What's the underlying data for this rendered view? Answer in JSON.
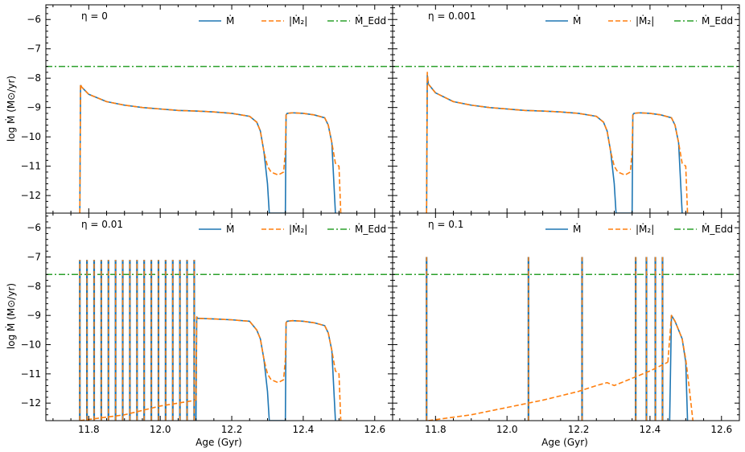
{
  "figure": {
    "xlabel": "Age (Gyr)",
    "ylabel": "log Ṁ (M⊙/yr)",
    "colors": {
      "mdot": "#1f77b4",
      "m2dot": "#ff7f0e",
      "edd": "#2ca02c"
    }
  },
  "chart_data": [
    {
      "type": "line",
      "panel_label": "η = 0",
      "xlim": [
        11.68,
        12.65
      ],
      "ylim": [
        -12.6,
        -5.5
      ],
      "xticks": [],
      "yticks": [
        "−12",
        "−11",
        "−10",
        "−9",
        "−8",
        "−7",
        "−6"
      ],
      "legend": {
        "placement": "top-right",
        "entries": [
          "Ṁ",
          "|Ṁ₂|",
          "Ṁ_Edd"
        ]
      },
      "edd_level": -7.6,
      "series": [
        {
          "name": "Ṁ",
          "key": "mdot",
          "x": [
            11.775,
            11.777,
            11.78,
            11.8,
            11.85,
            11.9,
            11.95,
            12.0,
            12.05,
            12.1,
            12.15,
            12.2,
            12.25,
            12.27,
            12.28,
            12.29,
            12.3,
            12.305,
            12.35,
            12.352,
            12.355,
            12.37,
            12.4,
            12.43,
            12.46,
            12.47,
            12.48,
            12.49
          ],
          "y": [
            -12.6,
            -8.25,
            -8.3,
            -8.55,
            -8.8,
            -8.92,
            -9.0,
            -9.05,
            -9.1,
            -9.12,
            -9.15,
            -9.2,
            -9.3,
            -9.5,
            -9.8,
            -10.5,
            -11.6,
            -12.6,
            -12.6,
            -9.25,
            -9.2,
            -9.18,
            -9.2,
            -9.25,
            -9.35,
            -9.6,
            -10.2,
            -12.6
          ]
        },
        {
          "name": "|Ṁ₂|",
          "key": "m2dot",
          "x": [
            11.775,
            11.777,
            11.78,
            11.8,
            11.85,
            11.9,
            11.95,
            12.0,
            12.05,
            12.1,
            12.15,
            12.2,
            12.25,
            12.27,
            12.28,
            12.29,
            12.3,
            12.31,
            12.33,
            12.345,
            12.35,
            12.352,
            12.355,
            12.37,
            12.4,
            12.43,
            12.46,
            12.47,
            12.48,
            12.49,
            12.5,
            12.505
          ],
          "y": [
            -12.6,
            -8.2,
            -8.3,
            -8.55,
            -8.8,
            -8.92,
            -9.0,
            -9.05,
            -9.1,
            -9.12,
            -9.15,
            -9.2,
            -9.3,
            -9.5,
            -9.8,
            -10.5,
            -11.0,
            -11.2,
            -11.3,
            -11.2,
            -10.5,
            -9.25,
            -9.2,
            -9.18,
            -9.2,
            -9.25,
            -9.35,
            -9.6,
            -10.2,
            -10.9,
            -11.0,
            -12.6
          ]
        },
        {
          "name": "Ṁ_Edd",
          "key": "edd",
          "x": [
            11.68,
            12.65
          ],
          "y": [
            -7.6,
            -7.6
          ]
        }
      ]
    },
    {
      "type": "line",
      "panel_label": "η = 0.001",
      "xlim": [
        11.68,
        12.65
      ],
      "ylim": [
        -12.6,
        -5.5
      ],
      "xticks": [],
      "yticks": [],
      "legend": {
        "placement": "top-right",
        "entries": [
          "Ṁ",
          "|Ṁ₂|",
          "Ṁ_Edd"
        ]
      },
      "edd_level": -7.6,
      "series": [
        {
          "name": "Ṁ",
          "key": "mdot",
          "x": [
            11.775,
            11.777,
            11.78,
            11.8,
            11.85,
            11.9,
            11.95,
            12.0,
            12.05,
            12.1,
            12.15,
            12.2,
            12.25,
            12.27,
            12.28,
            12.29,
            12.3,
            12.305,
            12.35,
            12.352,
            12.355,
            12.37,
            12.4,
            12.43,
            12.46,
            12.47,
            12.48,
            12.49
          ],
          "y": [
            -12.6,
            -7.9,
            -8.2,
            -8.5,
            -8.8,
            -8.92,
            -9.0,
            -9.05,
            -9.1,
            -9.12,
            -9.15,
            -9.2,
            -9.3,
            -9.5,
            -9.8,
            -10.5,
            -11.6,
            -12.6,
            -12.6,
            -9.25,
            -9.2,
            -9.18,
            -9.2,
            -9.25,
            -9.35,
            -9.6,
            -10.2,
            -12.6
          ]
        },
        {
          "name": "|Ṁ₂|",
          "key": "m2dot",
          "x": [
            11.775,
            11.777,
            11.78,
            11.8,
            11.85,
            11.9,
            11.95,
            12.0,
            12.05,
            12.1,
            12.15,
            12.2,
            12.25,
            12.27,
            12.28,
            12.29,
            12.3,
            12.31,
            12.33,
            12.345,
            12.35,
            12.352,
            12.355,
            12.37,
            12.4,
            12.43,
            12.46,
            12.47,
            12.48,
            12.49,
            12.5,
            12.505
          ],
          "y": [
            -12.6,
            -7.8,
            -8.2,
            -8.5,
            -8.8,
            -8.92,
            -9.0,
            -9.05,
            -9.1,
            -9.12,
            -9.15,
            -9.2,
            -9.3,
            -9.5,
            -9.8,
            -10.5,
            -11.0,
            -11.2,
            -11.3,
            -11.2,
            -10.5,
            -9.25,
            -9.2,
            -9.18,
            -9.2,
            -9.25,
            -9.35,
            -9.6,
            -10.2,
            -10.9,
            -11.0,
            -12.6
          ]
        },
        {
          "name": "Ṁ_Edd",
          "key": "edd",
          "x": [
            11.68,
            12.65
          ],
          "y": [
            -7.6,
            -7.6
          ]
        }
      ]
    },
    {
      "type": "line",
      "panel_label": "η = 0.01",
      "xlim": [
        11.68,
        12.65
      ],
      "ylim": [
        -12.6,
        -5.5
      ],
      "xticks": [
        "11.8",
        "12.0",
        "12.2",
        "12.4",
        "12.6"
      ],
      "yticks": [
        "−12",
        "−11",
        "−10",
        "−9",
        "−8",
        "−7",
        "−6"
      ],
      "legend": {
        "placement": "top-right",
        "entries": [
          "Ṁ",
          "|Ṁ₂|",
          "Ṁ_Edd"
        ]
      },
      "edd_level": -7.6,
      "pulses": {
        "x": [
          11.775,
          11.795,
          11.815,
          11.835,
          11.855,
          11.875,
          11.895,
          11.915,
          11.935,
          11.955,
          11.975,
          11.995,
          12.015,
          12.035,
          12.055,
          12.075,
          12.095
        ],
        "peak": -7.1
      },
      "series": [
        {
          "name": "|Ṁ₂| (baseline)",
          "key": "m2dot",
          "x": [
            11.775,
            11.9,
            12.0,
            12.1
          ],
          "y": [
            -12.6,
            -12.4,
            -12.1,
            -11.9
          ]
        },
        {
          "name": "Ṁ",
          "key": "mdot",
          "x": [
            12.1,
            12.102,
            12.105,
            12.15,
            12.2,
            12.25,
            12.27,
            12.28,
            12.29,
            12.3,
            12.305,
            12.35,
            12.352,
            12.355,
            12.37,
            12.4,
            12.43,
            12.46,
            12.47,
            12.48,
            12.49
          ],
          "y": [
            -12.6,
            -9.05,
            -9.1,
            -9.12,
            -9.15,
            -9.2,
            -9.5,
            -9.8,
            -10.5,
            -11.6,
            -12.6,
            -12.6,
            -9.25,
            -9.2,
            -9.18,
            -9.2,
            -9.25,
            -9.35,
            -9.6,
            -10.2,
            -12.6
          ]
        },
        {
          "name": "|Ṁ₂|",
          "key": "m2dot",
          "x": [
            12.1,
            12.102,
            12.105,
            12.15,
            12.2,
            12.25,
            12.27,
            12.28,
            12.29,
            12.3,
            12.31,
            12.33,
            12.345,
            12.35,
            12.352,
            12.355,
            12.37,
            12.4,
            12.43,
            12.46,
            12.47,
            12.48,
            12.49,
            12.5,
            12.505
          ],
          "y": [
            -11.9,
            -9.05,
            -9.1,
            -9.12,
            -9.15,
            -9.2,
            -9.5,
            -9.8,
            -10.5,
            -11.0,
            -11.2,
            -11.3,
            -11.2,
            -10.5,
            -9.25,
            -9.2,
            -9.18,
            -9.2,
            -9.25,
            -9.35,
            -9.6,
            -10.2,
            -10.9,
            -11.0,
            -12.6
          ]
        },
        {
          "name": "Ṁ_Edd",
          "key": "edd",
          "x": [
            11.68,
            12.65
          ],
          "y": [
            -7.6,
            -7.6
          ]
        }
      ]
    },
    {
      "type": "line",
      "panel_label": "η = 0.1",
      "xlim": [
        11.68,
        12.65
      ],
      "ylim": [
        -12.6,
        -5.5
      ],
      "xticks": [
        "11.8",
        "12.0",
        "12.2",
        "12.4",
        "12.6"
      ],
      "yticks": [],
      "legend": {
        "placement": "top-right",
        "entries": [
          "Ṁ",
          "|Ṁ₂|",
          "Ṁ_Edd"
        ]
      },
      "edd_level": -7.6,
      "pulses": {
        "x": [
          11.775,
          12.06,
          12.21,
          12.36,
          12.39,
          12.415,
          12.435
        ],
        "peak": -7.0
      },
      "series": [
        {
          "name": "|Ṁ₂| (baseline)",
          "key": "m2dot",
          "x": [
            11.78,
            11.9,
            12.0,
            12.1,
            12.2,
            12.25,
            12.28,
            12.3,
            12.35,
            12.4,
            12.45
          ],
          "y": [
            -12.6,
            -12.4,
            -12.15,
            -11.9,
            -11.6,
            -11.4,
            -11.3,
            -11.4,
            -11.15,
            -10.9,
            -10.6
          ]
        },
        {
          "name": "Ṁ",
          "key": "mdot",
          "x": [
            12.455,
            12.46,
            12.47,
            12.48,
            12.49,
            12.5,
            12.505
          ],
          "y": [
            -12.6,
            -9.0,
            -9.2,
            -9.5,
            -9.8,
            -10.6,
            -12.6
          ]
        },
        {
          "name": "|Ṁ₂|",
          "key": "m2dot",
          "x": [
            12.45,
            12.46,
            12.47,
            12.48,
            12.49,
            12.5,
            12.51,
            12.52
          ],
          "y": [
            -10.6,
            -9.0,
            -9.2,
            -9.5,
            -9.8,
            -10.5,
            -11.5,
            -12.6
          ]
        },
        {
          "name": "Ṁ_Edd",
          "key": "edd",
          "x": [
            11.68,
            12.65
          ],
          "y": [
            -7.6,
            -7.6
          ]
        }
      ]
    }
  ]
}
